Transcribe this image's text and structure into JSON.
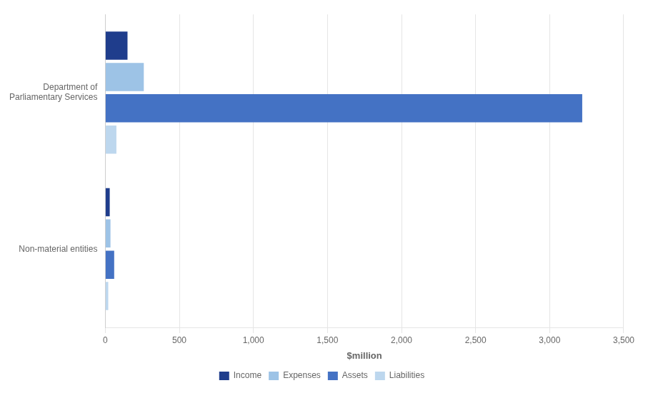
{
  "chart_data": {
    "type": "bar",
    "orientation": "horizontal",
    "categories": [
      "Department of\nParliamentary Services",
      "Non-material entities"
    ],
    "series": [
      {
        "name": "Income",
        "color": "#1f3d8c",
        "values": [
          150,
          30
        ]
      },
      {
        "name": "Expenses",
        "color": "#9dc3e6",
        "values": [
          260,
          35
        ]
      },
      {
        "name": "Assets",
        "color": "#4472c4",
        "values": [
          3220,
          60
        ]
      },
      {
        "name": "Liabilities",
        "color": "#bdd7ee",
        "values": [
          75,
          20
        ]
      }
    ],
    "xlabel": "$million",
    "xlim": [
      0,
      3500
    ],
    "xticks": [
      0,
      500,
      {
        "value": 1000,
        "label": "1,000"
      },
      {
        "value": 1500,
        "label": "1,500"
      },
      {
        "value": 2000,
        "label": "2,000"
      },
      {
        "value": 2500,
        "label": "2,500"
      },
      {
        "value": 3000,
        "label": "3,000"
      },
      {
        "value": 3500,
        "label": "3,500"
      }
    ],
    "grid": true,
    "legend": "bottom"
  }
}
